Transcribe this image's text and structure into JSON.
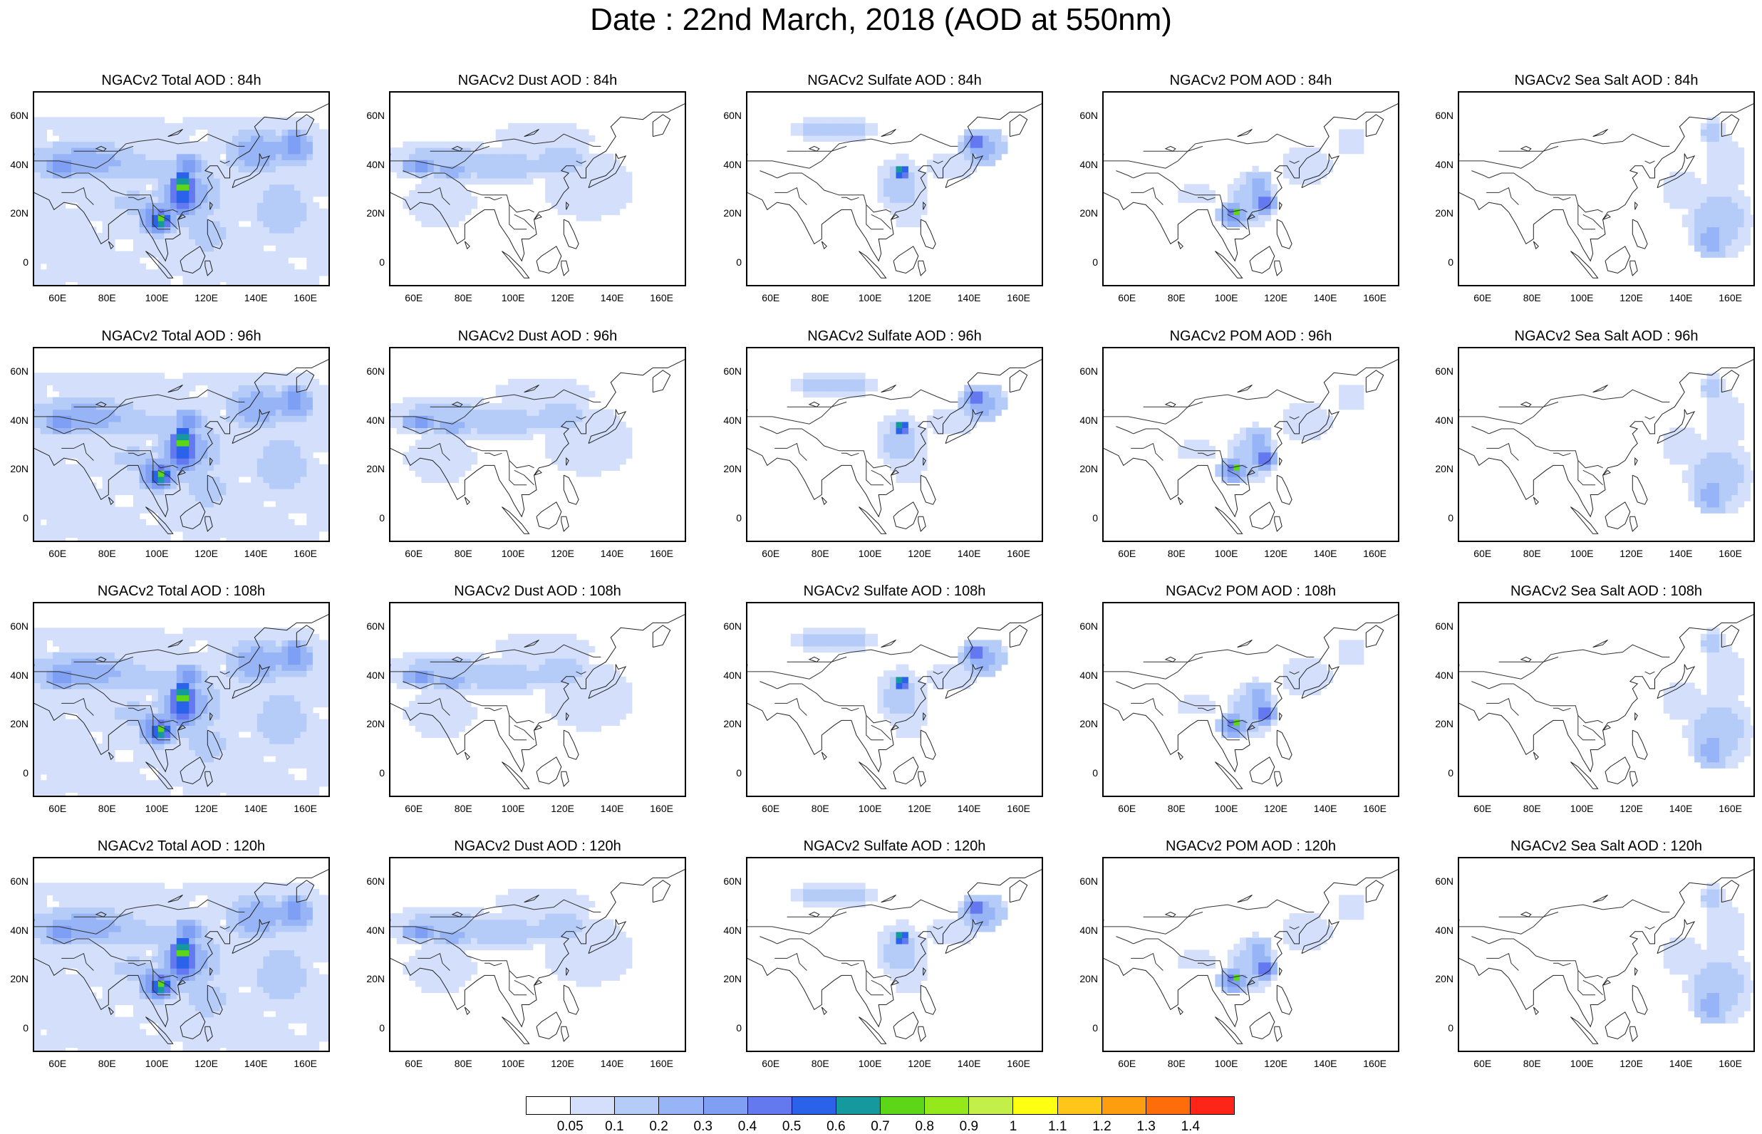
{
  "title": "Date : 22nd March, 2018 (AOD at 550nm)",
  "x_ticks": [
    "60E",
    "80E",
    "100E",
    "120E",
    "140E",
    "160E"
  ],
  "y_ticks": [
    "60N",
    "40N",
    "20N",
    "0"
  ],
  "colorbar": {
    "colors": [
      "#ffffff",
      "#d4e0fb",
      "#b5cbf8",
      "#96b4f6",
      "#7e9ff4",
      "#6478ef",
      "#2a63ea",
      "#16999c",
      "#5cd616",
      "#95e81c",
      "#c3ef48",
      "#ffff12",
      "#ffc518",
      "#ff9d10",
      "#ff6c0a",
      "#ff2318"
    ],
    "labels": [
      "0.05",
      "0.1",
      "0.2",
      "0.3",
      "0.4",
      "0.5",
      "0.6",
      "0.7",
      "0.8",
      "0.9",
      "1",
      "1.1",
      "1.2",
      "1.3",
      "1.4"
    ]
  },
  "panels": [
    [
      {
        "title": "NGACv2 Total AOD : 84h",
        "field": "total"
      },
      {
        "title": "NGACv2 Dust AOD : 84h",
        "field": "dust"
      },
      {
        "title": "NGACv2 Sulfate AOD : 84h",
        "field": "sulfate"
      },
      {
        "title": "NGACv2 POM AOD : 84h",
        "field": "pom"
      },
      {
        "title": "NGACv2 Sea Salt AOD : 84h",
        "field": "seasalt"
      }
    ],
    [
      {
        "title": "NGACv2 Total AOD : 96h",
        "field": "total"
      },
      {
        "title": "NGACv2 Dust AOD : 96h",
        "field": "dust"
      },
      {
        "title": "NGACv2 Sulfate AOD : 96h",
        "field": "sulfate"
      },
      {
        "title": "NGACv2 POM AOD : 96h",
        "field": "pom"
      },
      {
        "title": "NGACv2 Sea Salt AOD : 96h",
        "field": "seasalt"
      }
    ],
    [
      {
        "title": "NGACv2 Total AOD : 108h",
        "field": "total"
      },
      {
        "title": "NGACv2 Dust AOD : 108h",
        "field": "dust"
      },
      {
        "title": "NGACv2 Sulfate AOD : 108h",
        "field": "sulfate"
      },
      {
        "title": "NGACv2 POM AOD : 108h",
        "field": "pom"
      },
      {
        "title": "NGACv2 Sea Salt AOD : 108h",
        "field": "seasalt"
      }
    ],
    [
      {
        "title": "NGACv2 Total AOD : 120h",
        "field": "total"
      },
      {
        "title": "NGACv2 Dust AOD : 120h",
        "field": "dust"
      },
      {
        "title": "NGACv2 Sulfate AOD : 120h",
        "field": "sulfate"
      },
      {
        "title": "NGACv2 POM AOD : 120h",
        "field": "pom"
      },
      {
        "title": "NGACv2 Sea Salt  AOD : 120h",
        "field": "seasalt"
      }
    ]
  ]
}
